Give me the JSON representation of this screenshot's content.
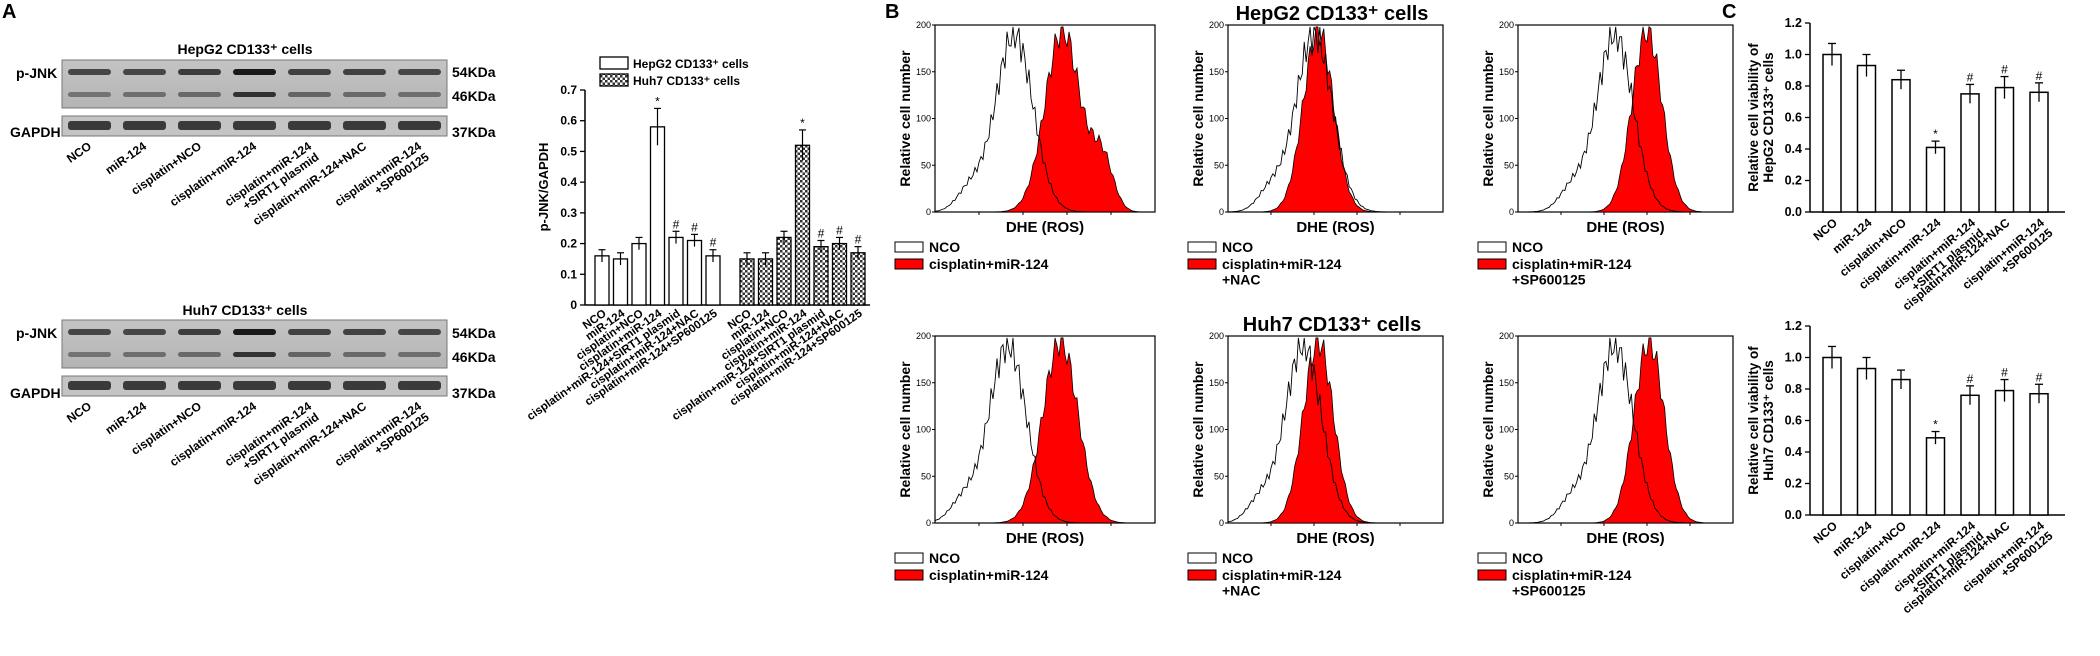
{
  "panel_labels": {
    "a": "A",
    "b": "B",
    "c": "C"
  },
  "blots": {
    "top": {
      "title": "HepG2 CD133⁺ cells"
    },
    "bottom": {
      "title": "Huh7 CD133⁺ cells"
    },
    "row_labels": [
      "p-JNK",
      "GAPDH"
    ],
    "size_labels": [
      "54KDa",
      "46KDa",
      "37KDa"
    ],
    "lanes": [
      "NCO",
      "miR-124",
      "cisplatin+NCO",
      "cisplatin+miR-124",
      "cisplatin+miR-124\n+SIRT1 plasmid",
      "cisplatin+miR-124+NAC",
      "cisplatin+miR-124\n+SP600125"
    ]
  },
  "flow": {
    "title_top": "HepG2 CD133⁺ cells",
    "title_bottom": "Huh7 CD133⁺ cells",
    "ylabel": "Relative cell number",
    "xlabel": "DHE (ROS)",
    "yticks": [
      "0",
      "50",
      "100",
      "150",
      "200"
    ],
    "legend_control": "NCO",
    "legends": [
      "cisplatin+miR-124",
      "cisplatin+miR-124\n+NAC",
      "cisplatin+miR-124\n+SP600125"
    ],
    "colors": {
      "control": "#ffffff",
      "treated": "#ff0000"
    }
  },
  "chart_data": [
    {
      "type": "bar",
      "ylabel": "p-JNK/GAPDH",
      "ylim": [
        0,
        0.7
      ],
      "yticks": [
        "0",
        "0.1",
        "0.2",
        "0.3",
        "0.4",
        "0.5",
        "0.6",
        "0.7"
      ],
      "categories": [
        "NCO",
        "miR-124",
        "cisplatin+NCO",
        "cisplatin+miR-124",
        "cisplatin+miR-124+SIRT1 plasmid",
        "cisplatin+miR-124+NAC",
        "cisplatin+miR-124+SP600125"
      ],
      "series": [
        {
          "name": "HepG2 CD133⁺ cells",
          "values": [
            0.16,
            0.15,
            0.2,
            0.58,
            0.22,
            0.21,
            0.16
          ],
          "errors": [
            0.02,
            0.02,
            0.02,
            0.06,
            0.02,
            0.02,
            0.02
          ],
          "marks": [
            "",
            "",
            "",
            "*",
            "#",
            "#",
            "#"
          ]
        },
        {
          "name": "Huh7 CD133⁺ cells",
          "values": [
            0.15,
            0.15,
            0.22,
            0.52,
            0.19,
            0.2,
            0.17
          ],
          "errors": [
            0.02,
            0.02,
            0.02,
            0.05,
            0.02,
            0.02,
            0.02
          ],
          "marks": [
            "",
            "",
            "",
            "*",
            "#",
            "#",
            "#"
          ]
        }
      ],
      "legend_position": "top"
    },
    {
      "type": "bar",
      "ylabel": "Relative cell viability of HepG2 CD133⁺ cells",
      "ylim": [
        0,
        1.2
      ],
      "yticks": [
        "0.0",
        "0.2",
        "0.4",
        "0.6",
        "0.8",
        "1.0",
        "1.2"
      ],
      "categories": [
        "NCO",
        "miR-124",
        "cisplatin+NCO",
        "cisplatin+miR-124",
        "cisplatin+miR-124\n+SIRT1 plasmid",
        "cisplatin+miR-124+NAC",
        "cisplatin+miR-124\n+SP600125"
      ],
      "values": [
        1.0,
        0.93,
        0.84,
        0.41,
        0.75,
        0.79,
        0.76
      ],
      "errors": [
        0.07,
        0.07,
        0.06,
        0.04,
        0.06,
        0.07,
        0.06
      ],
      "marks": [
        "",
        "",
        "",
        "*",
        "#",
        "#",
        "#"
      ]
    },
    {
      "type": "bar",
      "ylabel": "Relative cell viability of Huh7 CD133⁺ cells",
      "ylim": [
        0,
        1.2
      ],
      "yticks": [
        "0.0",
        "0.2",
        "0.4",
        "0.6",
        "0.8",
        "1.0",
        "1.2"
      ],
      "categories": [
        "NCO",
        "miR-124",
        "cisplatin+NCO",
        "cisplatin+miR-124",
        "cisplatin+miR-124\n+SIRT1 plasmid",
        "cisplatin+miR-124+NAC",
        "cisplatin+miR-124\n+SP600125"
      ],
      "values": [
        1.0,
        0.93,
        0.86,
        0.49,
        0.76,
        0.79,
        0.77
      ],
      "errors": [
        0.07,
        0.07,
        0.06,
        0.04,
        0.06,
        0.07,
        0.06
      ],
      "marks": [
        "",
        "",
        "",
        "*",
        "#",
        "#",
        "#"
      ]
    }
  ]
}
